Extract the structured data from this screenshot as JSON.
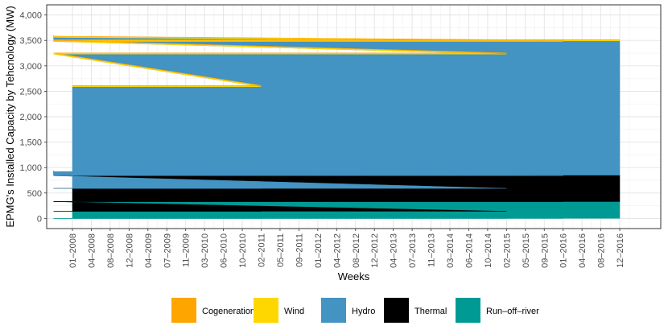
{
  "chart_data": {
    "type": "area",
    "stacked": true,
    "xlabel": "Weeks",
    "ylabel": "EPMG's Installed Capacity by Tehcnology (MW)",
    "ylim": [
      -200,
      4200
    ],
    "yticks": [
      0,
      500,
      1000,
      1500,
      2000,
      2500,
      3000,
      3500,
      4000
    ],
    "ytick_labels": [
      "0",
      "500",
      "1,000",
      "1,500",
      "2,000",
      "2,500",
      "3,000",
      "3,500",
      "4,000"
    ],
    "xticks": [
      "01–2008",
      "04–2008",
      "08–2008",
      "12–2008",
      "04–2009",
      "07–2009",
      "11–2009",
      "03–2010",
      "06–2010",
      "10–2010",
      "02–2011",
      "05–2011",
      "09–2011",
      "01–2012",
      "04–2012",
      "08–2012",
      "12–2012",
      "04–2013",
      "07–2013",
      "11–2013",
      "03–2014",
      "06–2014",
      "10–2014",
      "02–2015",
      "05–2015",
      "09–2015",
      "01–2016",
      "04–2016",
      "08–2016",
      "12–2016"
    ],
    "grid": true,
    "legend_position": "bottom",
    "x": [
      "01–2008",
      "02–2011",
      "03–2011",
      "02–2015",
      "03–2015",
      "01–2016",
      "02–2016",
      "05–2016",
      "06–2016",
      "10–2016",
      "11–2016",
      "12–2016"
    ],
    "series": [
      {
        "name": "Run–off–river",
        "color": "#009A95",
        "values": [
          140,
          140,
          140,
          140,
          330,
          330,
          330,
          330,
          330,
          330,
          330,
          330
        ]
      },
      {
        "name": "Thermal",
        "color": "#000000",
        "values": [
          450,
          450,
          450,
          450,
          510,
          510,
          590,
          590,
          605,
          605,
          520,
          520
        ]
      },
      {
        "name": "Hydro",
        "color": "#4393C3",
        "values": [
          2000,
          2000,
          2640,
          2640,
          2640,
          2640,
          2640,
          2640,
          2640,
          2640,
          2640,
          2640
        ]
      },
      {
        "name": "Wind",
        "color": "#FFD700",
        "values": [
          20,
          20,
          20,
          20,
          20,
          20,
          20,
          20,
          20,
          20,
          20,
          20
        ]
      },
      {
        "name": "Cogeneration",
        "color": "#FFA500",
        "values": [
          5,
          5,
          5,
          5,
          5,
          5,
          5,
          5,
          5,
          5,
          5,
          5
        ]
      }
    ],
    "legend": [
      {
        "label": "Cogeneration",
        "color": "#FFA500"
      },
      {
        "label": "Wind",
        "color": "#FFD700"
      },
      {
        "label": "Hydro",
        "color": "#4393C3"
      },
      {
        "label": "Thermal",
        "color": "#000000"
      },
      {
        "label": "Run–off–river",
        "color": "#009A95"
      }
    ]
  }
}
